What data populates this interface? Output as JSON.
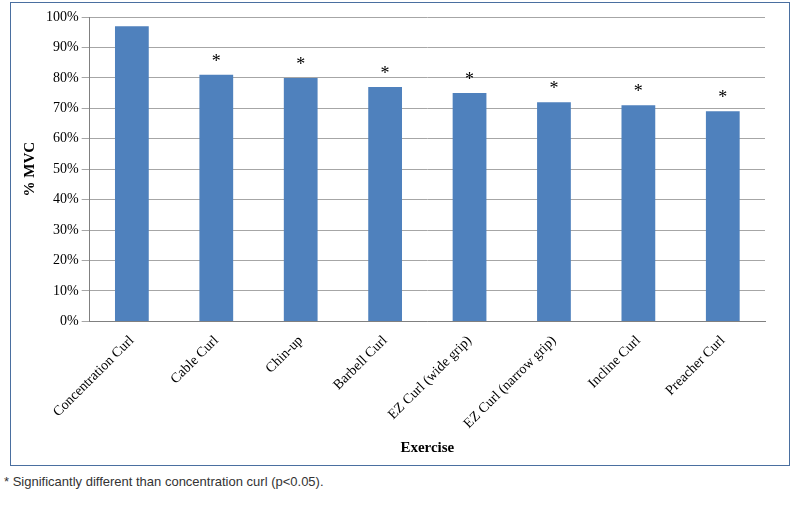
{
  "chart_data": {
    "type": "bar",
    "x_label": "Exercise",
    "y_label": "% MVC",
    "categories": [
      "Concentration Curl",
      "Cable Curl",
      "Chin-up",
      "Barbell Curl",
      "EZ Curl (wide grip)",
      "EZ Curl (narrow grip)",
      "Incline Curl",
      "Preacher Curl"
    ],
    "values": [
      97,
      81,
      80,
      77,
      75,
      72,
      71,
      69
    ],
    "annotations": [
      null,
      "*",
      "*",
      "*",
      "*",
      "*",
      "*",
      "*"
    ],
    "footnote": "* Significantly different than concentration curl (p<0.05).",
    "color": "#4f81bd",
    "ylim": [
      0,
      100
    ],
    "yticks": [
      {
        "value": 0,
        "label": "0%"
      },
      {
        "value": 10,
        "label": "10%"
      },
      {
        "value": 20,
        "label": "20%"
      },
      {
        "value": 30,
        "label": "30%"
      },
      {
        "value": 40,
        "label": "40%"
      },
      {
        "value": 50,
        "label": "50%"
      },
      {
        "value": 60,
        "label": "60%"
      },
      {
        "value": 70,
        "label": "70%"
      },
      {
        "value": 80,
        "label": "80%"
      },
      {
        "value": 90,
        "label": "90%"
      },
      {
        "value": 100,
        "label": "100%"
      }
    ],
    "grid": true
  }
}
